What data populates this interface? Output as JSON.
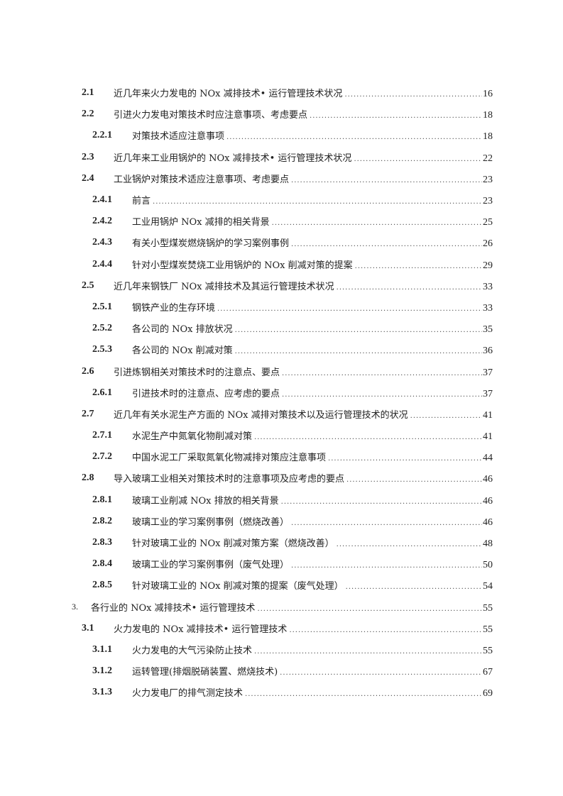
{
  "toc": [
    {
      "level": 1,
      "num": "2.1",
      "title": "近几年来火力发电的 NOx 减排技术• 运行管理技术状况",
      "page": "16"
    },
    {
      "level": 1,
      "num": "2.2",
      "title": "引进火力发电对策技术时应注意事项、考虑要点",
      "page": "18"
    },
    {
      "level": 2,
      "num": "2.2.1",
      "title": "对策技术适应注意事项",
      "page": "18"
    },
    {
      "level": 1,
      "num": "2.3",
      "title": "近几年来工业用锅炉的 NOx 减排技术• 运行管理技术状况",
      "page": "22"
    },
    {
      "level": 1,
      "num": "2.4",
      "title": "工业锅炉对策技术适应注意事项、考虑要点",
      "page": "23"
    },
    {
      "level": 2,
      "num": "2.4.1",
      "title": "前言",
      "page": "23"
    },
    {
      "level": 2,
      "num": "2.4.2",
      "title": "工业用锅炉 NOx 减排的相关背景",
      "page": "25"
    },
    {
      "level": 2,
      "num": "2.4.3",
      "title": "有关小型煤炭燃烧锅炉的学习案例事例",
      "page": "26"
    },
    {
      "level": 2,
      "num": "2.4.4",
      "title": "针对小型煤炭焚烧工业用锅炉的 NOx 削减对策的提案",
      "page": "29"
    },
    {
      "level": 1,
      "num": "2.5",
      "title": "近几年来钢铁厂 NOx 减排技术及其运行管理技术状况",
      "page": "33"
    },
    {
      "level": 2,
      "num": "2.5.1",
      "title": "钢铁产业的生存环境",
      "page": "33"
    },
    {
      "level": 2,
      "num": "2.5.2",
      "title": "各公司的 NOx 排放状况",
      "page": "35"
    },
    {
      "level": 2,
      "num": "2.5.3",
      "title": "各公司的 NOx 削减对策",
      "page": "36"
    },
    {
      "level": 1,
      "num": "2.6",
      "title": "引进炼钢相关对策技术时的注意点、要点",
      "page": "37"
    },
    {
      "level": 2,
      "num": "2.6.1",
      "title": "引进技术时的注意点、应考虑的要点",
      "page": "37"
    },
    {
      "level": 1,
      "num": "2.7",
      "title": "近几年有关水泥生产方面的 NOx 减排对策技术以及运行管理技术的状况",
      "page": "41"
    },
    {
      "level": 2,
      "num": "2.7.1",
      "title": "水泥生产中氮氧化物削减对策",
      "page": "41"
    },
    {
      "level": 2,
      "num": "2.7.2",
      "title": "中国水泥工厂采取氮氧化物减排对策应注意事项",
      "page": "44"
    },
    {
      "level": 1,
      "num": "2.8",
      "title": "导入玻璃工业相关对策技术时的注意事项及应考虑的要点",
      "page": "46"
    },
    {
      "level": 2,
      "num": "2.8.1",
      "title": "玻璃工业削减 NOx 排放的相关背景",
      "page": "46"
    },
    {
      "level": 2,
      "num": "2.8.2",
      "title": "玻璃工业的学习案例事例（燃烧改善）",
      "page": "46"
    },
    {
      "level": 2,
      "num": "2.8.3",
      "title": "针对玻璃工业的 NOx 削减对策方案（燃烧改善）",
      "page": "48"
    },
    {
      "level": 2,
      "num": "2.8.4",
      "title": "玻璃工业的学习案例事例（废气处理）",
      "page": "50"
    },
    {
      "level": 2,
      "num": "2.8.5",
      "title": "针对玻璃工业的 NOx 削减对策的提案（废气处理）",
      "page": "54"
    },
    {
      "level": 0,
      "num": "3.",
      "title": "各行业的 NOx 减排技术• 运行管理技术",
      "page": "55"
    },
    {
      "level": 1,
      "num": "3.1",
      "title": "火力发电的 NOx 减排技术• 运行管理技术",
      "page": "55"
    },
    {
      "level": 2,
      "num": "3.1.1",
      "title": "火力发电的大气污染防止技术",
      "page": "55"
    },
    {
      "level": 2,
      "num": "3.1.2",
      "title": "运转管理(排烟脱硝装置、燃烧技术)",
      "page": "67"
    },
    {
      "level": 2,
      "num": "3.1.3",
      "title": "火力发电厂的排气测定技术",
      "page": "69"
    }
  ]
}
